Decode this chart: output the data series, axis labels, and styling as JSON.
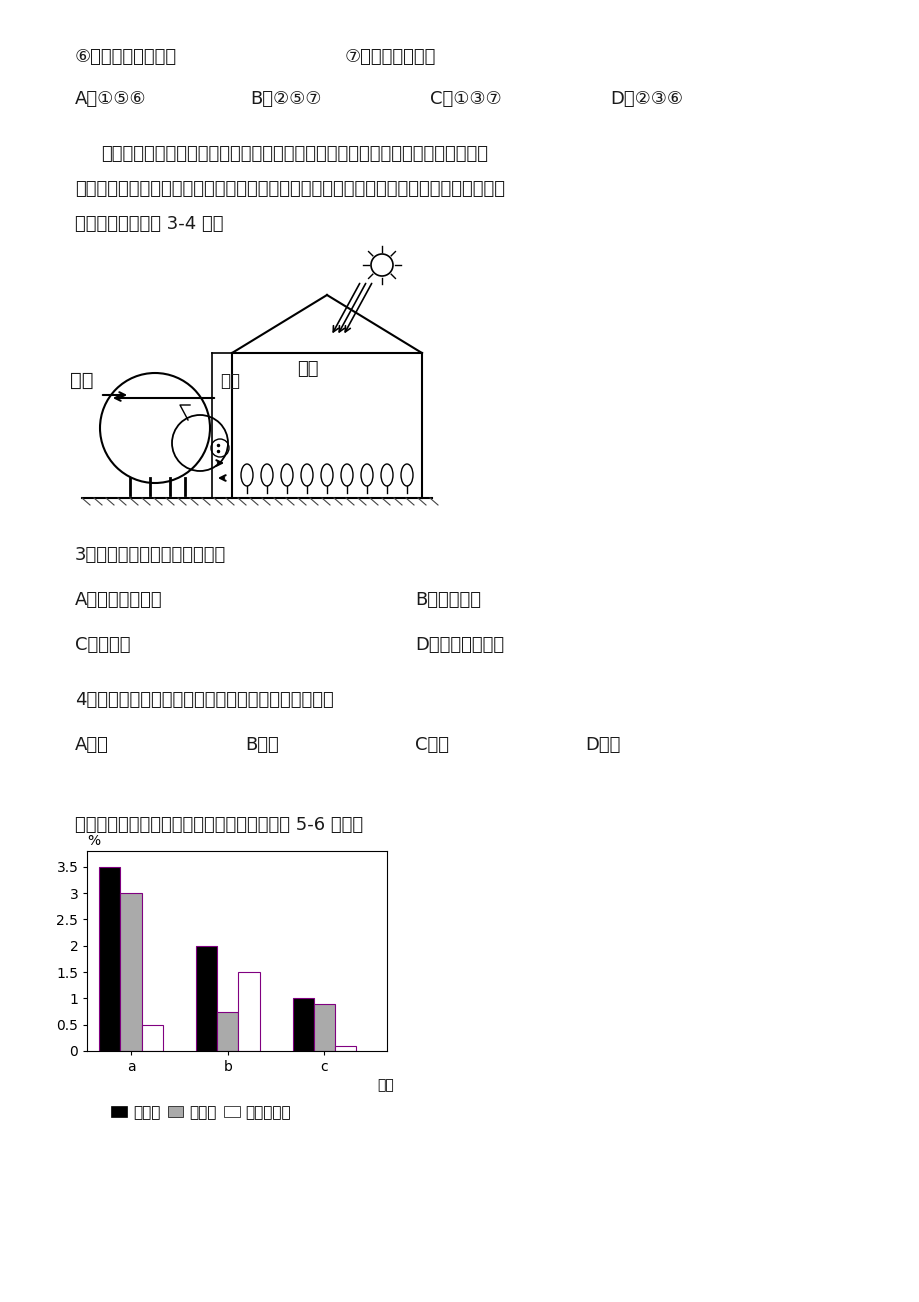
{
  "page_bg": "#ffffff",
  "line1_left": "⑥建设湿地生态公园",
  "line1_right": "⑦控制城市化进程",
  "q2_A": "A．①⑤⑥",
  "q2_B": "B．②⑤⑦",
  "q2_C": "C．①③⑦",
  "q2_D": "D．②③⑥",
  "para1": "随着社会的发展，绿色蔬菜和水果在市场上大受欢迎。为了提高经济收入，我国不",
  "para2": "少农村地区，将蔬菜种植和养殖场相结合，为市场提供有机果蔬和畜产品，实现利益的最大",
  "para3": "化。读图完成下列 3-4 题。",
  "q3_title": "3．该地区的农业地域类型属于",
  "q3_A": "A．季风水田农业",
  "q3_B": "B．混合农业",
  "q3_C": "C．乳畜业",
  "q3_D": "D．商品谷物农业",
  "q4_title": "4．大棚种植蔬菜、水果，经济效益最高的季节可能是",
  "q4_A": "A．春",
  "q4_B": "B．夏",
  "q4_C": "C．秋",
  "q4_D": "D．冬",
  "chart_intro": "下图为三个区域的人口统计图。读图回答下面 5-6 小题。",
  "shi_chang": "市场",
  "chan_pin1": "产品",
  "chan_pin2": "产品",
  "bar_data": {
    "categories": [
      "a",
      "b",
      "c"
    ],
    "birth_rate": [
      3.5,
      2.0,
      1.0
    ],
    "death_rate": [
      3.0,
      0.75,
      0.9
    ],
    "natural_growth": [
      0.5,
      1.5,
      0.1
    ]
  },
  "bar_colors": {
    "birth": "#000000",
    "death": "#aaaaaa",
    "natural": "#ffffff"
  },
  "bar_edge_color": "#800080",
  "ylabel": "%",
  "xlabel": "区域",
  "yticks": [
    0,
    0.5,
    1,
    1.5,
    2,
    2.5,
    3,
    3.5
  ],
  "legend_birth": "出生率",
  "legend_death": "死亡率",
  "legend_natural": "自然增长率"
}
